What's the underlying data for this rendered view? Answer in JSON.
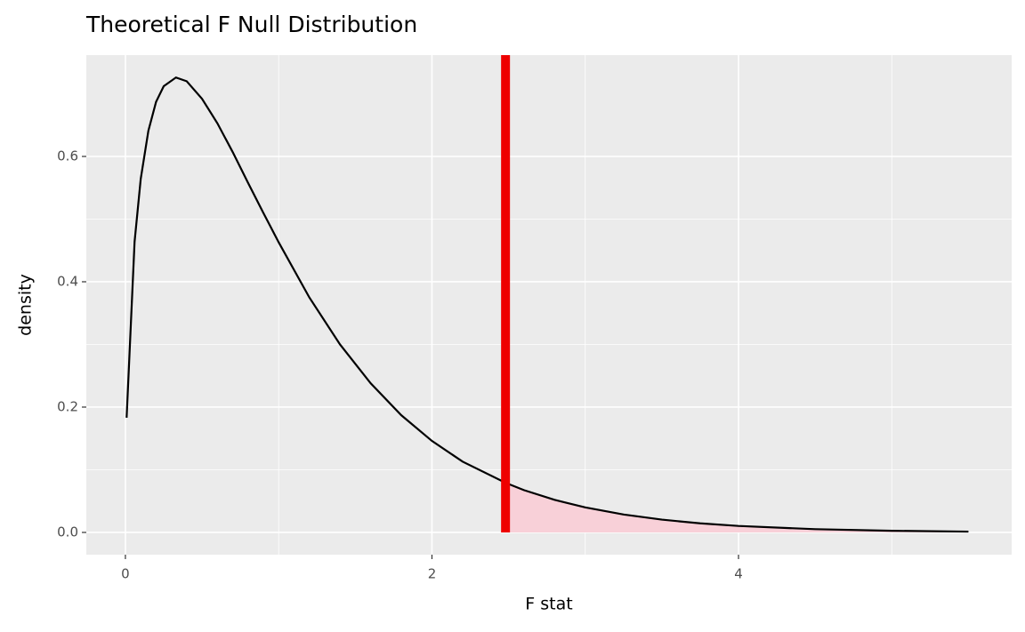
{
  "chart_data": {
    "type": "density",
    "title": "Theoretical F Null Distribution",
    "x_label": "F stat",
    "y_label": "density",
    "x": [
      0.008,
      0.06,
      0.1,
      0.15,
      0.2,
      0.25,
      0.33,
      0.4,
      0.5,
      0.6,
      0.7,
      0.8,
      0.9,
      1.0,
      1.2,
      1.4,
      1.6,
      1.8,
      2.0,
      2.2,
      2.48,
      2.6,
      2.8,
      3.0,
      3.25,
      3.5,
      3.75,
      4.0,
      4.5,
      5.0,
      5.5
    ],
    "series": [
      {
        "color": "#000000",
        "values": [
          0.183,
          0.464,
          0.564,
          0.641,
          0.687,
          0.712,
          0.726,
          0.72,
          0.692,
          0.653,
          0.607,
          0.558,
          0.51,
          0.463,
          0.375,
          0.3,
          0.238,
          0.187,
          0.146,
          0.113,
          0.0792,
          0.0675,
          0.052,
          0.0399,
          0.0286,
          0.0204,
          0.0145,
          0.0103,
          0.0052,
          0.0026,
          0.0013
        ]
      }
    ],
    "observed_stat": 2.48,
    "observed_color": "#ee0000",
    "shade_color": "#f8d0d8",
    "xlim": [
      -0.255,
      5.782
    ],
    "ylim": [
      -0.0355,
      0.7617
    ],
    "xticks": [
      0,
      2,
      4
    ],
    "yticks": [
      {
        "value": 0,
        "label": "0.0"
      },
      {
        "value": 0.2,
        "label": "0.2"
      },
      {
        "value": 0.4,
        "label": "0.4"
      },
      {
        "value": 0.6,
        "label": "0.6"
      }
    ],
    "grid": true
  }
}
